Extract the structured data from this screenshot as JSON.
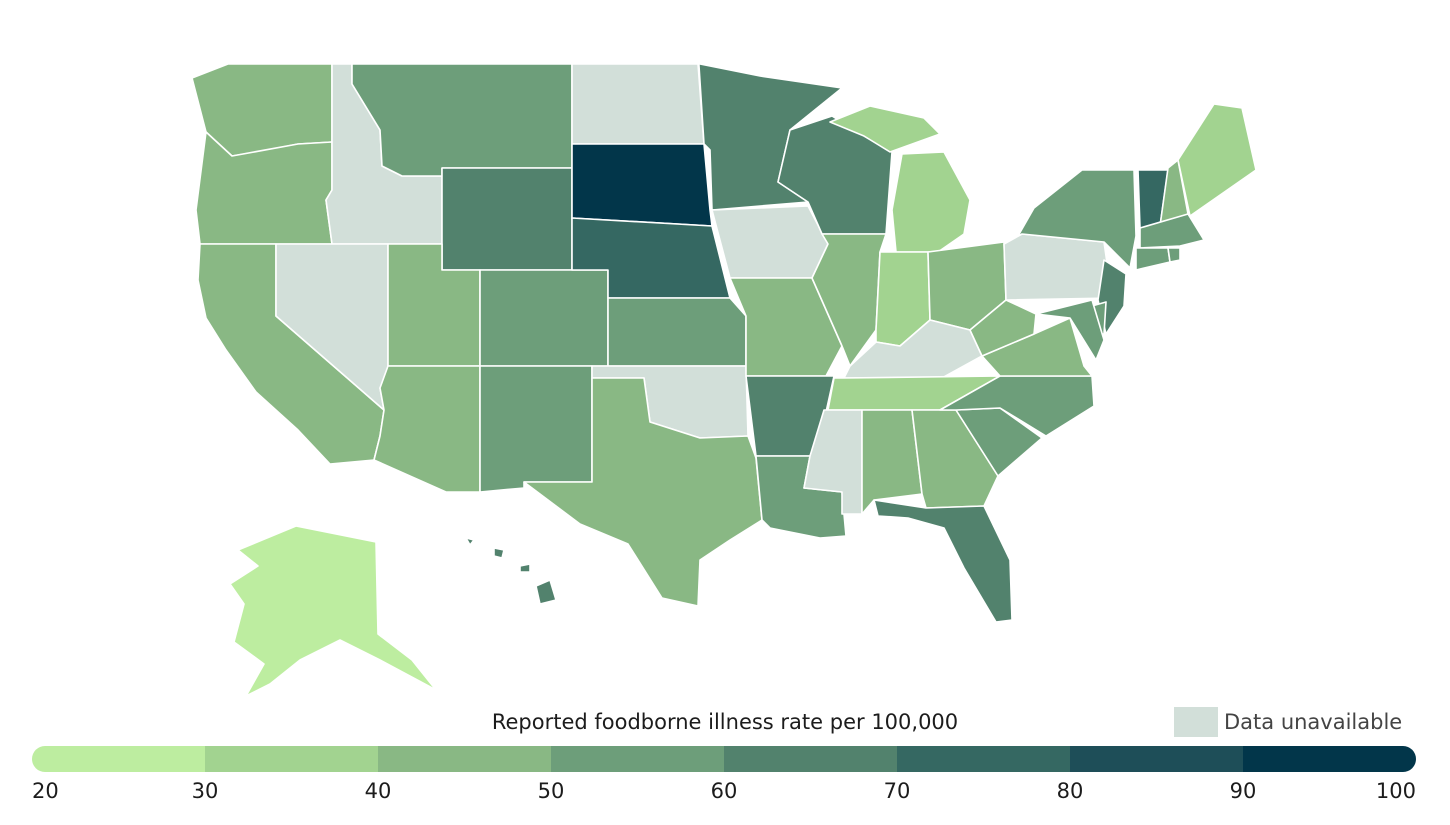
{
  "legend": {
    "title": "Reported foodborne illness rate per 100,000",
    "unavailable_label": "Data unavailable",
    "unavailable_color": "#d2dfd9",
    "ticks": [
      "20",
      "30",
      "40",
      "50",
      "60",
      "70",
      "80",
      "90",
      "100"
    ],
    "bins": [
      {
        "min": 20,
        "max": 30,
        "color": "#bdeda0"
      },
      {
        "min": 30,
        "max": 40,
        "color": "#a2d390"
      },
      {
        "min": 40,
        "max": 50,
        "color": "#89b884"
      },
      {
        "min": 50,
        "max": 60,
        "color": "#6d9e7a"
      },
      {
        "min": 60,
        "max": 70,
        "color": "#52826d"
      },
      {
        "min": 70,
        "max": 80,
        "color": "#356862"
      },
      {
        "min": 80,
        "max": 90,
        "color": "#1e4e58"
      },
      {
        "min": 90,
        "max": 100,
        "color": "#02364a"
      }
    ]
  },
  "states": [
    {
      "id": "WA",
      "bin": 2
    },
    {
      "id": "OR",
      "bin": 2
    },
    {
      "id": "CA",
      "bin": 2
    },
    {
      "id": "ID",
      "bin": null
    },
    {
      "id": "NV",
      "bin": null
    },
    {
      "id": "MT",
      "bin": 3
    },
    {
      "id": "WY",
      "bin": 4
    },
    {
      "id": "UT",
      "bin": 2
    },
    {
      "id": "CO",
      "bin": 3
    },
    {
      "id": "AZ",
      "bin": 2
    },
    {
      "id": "NM",
      "bin": 3
    },
    {
      "id": "ND",
      "bin": null
    },
    {
      "id": "SD",
      "bin": 7
    },
    {
      "id": "NE",
      "bin": 5
    },
    {
      "id": "KS",
      "bin": 3
    },
    {
      "id": "OK",
      "bin": null
    },
    {
      "id": "TX",
      "bin": 2
    },
    {
      "id": "MN",
      "bin": 4
    },
    {
      "id": "IA",
      "bin": null
    },
    {
      "id": "MO",
      "bin": 2
    },
    {
      "id": "AR",
      "bin": 4
    },
    {
      "id": "LA",
      "bin": 3
    },
    {
      "id": "WI",
      "bin": 4
    },
    {
      "id": "IL",
      "bin": 2
    },
    {
      "id": "MI",
      "bin": 1
    },
    {
      "id": "IN",
      "bin": 1
    },
    {
      "id": "OH",
      "bin": 2
    },
    {
      "id": "KY",
      "bin": null
    },
    {
      "id": "TN",
      "bin": 1
    },
    {
      "id": "MS",
      "bin": null
    },
    {
      "id": "AL",
      "bin": 2
    },
    {
      "id": "GA",
      "bin": 2
    },
    {
      "id": "FL",
      "bin": 4
    },
    {
      "id": "SC",
      "bin": 3
    },
    {
      "id": "NC",
      "bin": 3
    },
    {
      "id": "VA",
      "bin": 2
    },
    {
      "id": "WV",
      "bin": 2
    },
    {
      "id": "PA",
      "bin": null
    },
    {
      "id": "NY",
      "bin": 3
    },
    {
      "id": "NJ",
      "bin": 4
    },
    {
      "id": "DE",
      "bin": 3
    },
    {
      "id": "MD",
      "bin": 3
    },
    {
      "id": "VT",
      "bin": 5
    },
    {
      "id": "NH",
      "bin": 2
    },
    {
      "id": "ME",
      "bin": 1
    },
    {
      "id": "MA",
      "bin": 3
    },
    {
      "id": "CT",
      "bin": 3
    },
    {
      "id": "RI",
      "bin": 3
    },
    {
      "id": "AK",
      "bin": 0
    },
    {
      "id": "HI",
      "bin": 4
    }
  ]
}
